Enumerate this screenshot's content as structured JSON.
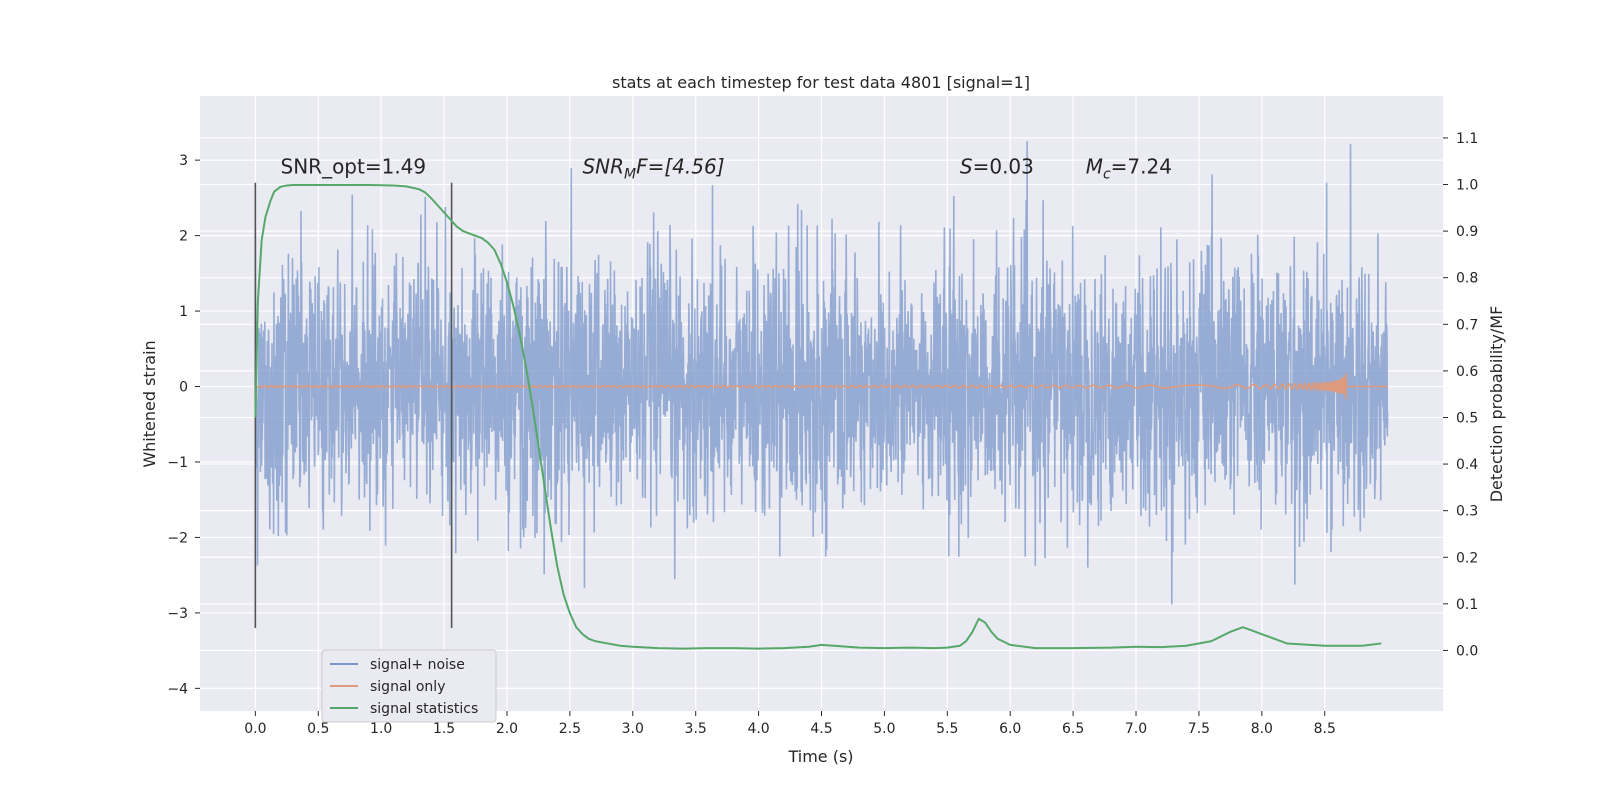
{
  "chart_data": {
    "type": "line",
    "title": "stats at each timestep for test data 4801 [signal=1]",
    "xlabel": "Time (s)",
    "ylabel": "Whitened strain",
    "y2label": "Detection probability/MF",
    "xlim": [
      -0.44,
      9.44
    ],
    "ylim": [
      -4.3,
      3.85
    ],
    "y2lim": [
      -0.13,
      1.19
    ],
    "xticks": [
      "0.0",
      "0.5",
      "1.0",
      "1.5",
      "2.0",
      "2.5",
      "3.0",
      "3.5",
      "4.0",
      "4.5",
      "5.0",
      "5.5",
      "6.0",
      "6.5",
      "7.0",
      "7.5",
      "8.0",
      "8.5"
    ],
    "yticks": [
      "−4",
      "−3",
      "−2",
      "−1",
      "0",
      "1",
      "2",
      "3"
    ],
    "y2ticks": [
      "0.0",
      "0.1",
      "0.2",
      "0.3",
      "0.4",
      "0.5",
      "0.6",
      "0.7",
      "0.8",
      "0.9",
      "1.0",
      "1.1"
    ],
    "grid": true,
    "legend_position": "lower-left",
    "colors": {
      "noise": "#7a97c9",
      "signal": "#dd9a7c",
      "stat": "#55a868",
      "vline": "#555555",
      "background": "#eaeaf2",
      "grid": "#ffffff"
    },
    "series": [
      {
        "name": "signal+ noise",
        "kind": "noise",
        "t_start": 0.0,
        "t_end": 9.0,
        "std": 0.85,
        "envelope_y": [
          -2.6,
          2.6
        ]
      },
      {
        "name": "signal only",
        "kind": "chirp",
        "t_start": 0.0,
        "t_end": 9.0,
        "merger_time": 8.67,
        "max_amplitude": 0.2
      },
      {
        "name": "signal statistics",
        "kind": "line",
        "axis": "right",
        "x": [
          0.0,
          0.02,
          0.05,
          0.08,
          0.12,
          0.15,
          0.2,
          0.25,
          0.3,
          0.4,
          0.5,
          0.7,
          0.9,
          1.1,
          1.2,
          1.3,
          1.35,
          1.4,
          1.45,
          1.5,
          1.55,
          1.6,
          1.65,
          1.7,
          1.75,
          1.8,
          1.85,
          1.9,
          1.95,
          2.0,
          2.05,
          2.1,
          2.15,
          2.2,
          2.25,
          2.3,
          2.35,
          2.4,
          2.45,
          2.5,
          2.55,
          2.6,
          2.65,
          2.7,
          2.8,
          2.9,
          3.0,
          3.2,
          3.4,
          3.6,
          3.8,
          4.0,
          4.2,
          4.4,
          4.5,
          4.6,
          4.8,
          5.0,
          5.2,
          5.4,
          5.5,
          5.6,
          5.65,
          5.7,
          5.75,
          5.8,
          5.85,
          5.9,
          6.0,
          6.2,
          6.5,
          6.8,
          7.0,
          7.2,
          7.4,
          7.6,
          7.75,
          7.85,
          8.0,
          8.2,
          8.5,
          8.8,
          8.95
        ],
        "y": [
          0.5,
          0.75,
          0.88,
          0.93,
          0.965,
          0.985,
          0.995,
          0.998,
          0.999,
          0.999,
          0.999,
          0.999,
          0.999,
          0.998,
          0.996,
          0.99,
          0.983,
          0.97,
          0.955,
          0.94,
          0.925,
          0.91,
          0.9,
          0.895,
          0.89,
          0.885,
          0.875,
          0.86,
          0.83,
          0.79,
          0.74,
          0.68,
          0.61,
          0.53,
          0.44,
          0.35,
          0.26,
          0.18,
          0.12,
          0.08,
          0.05,
          0.035,
          0.025,
          0.02,
          0.015,
          0.01,
          0.008,
          0.005,
          0.004,
          0.005,
          0.005,
          0.004,
          0.005,
          0.008,
          0.012,
          0.01,
          0.006,
          0.005,
          0.006,
          0.005,
          0.006,
          0.01,
          0.02,
          0.04,
          0.068,
          0.06,
          0.04,
          0.025,
          0.012,
          0.005,
          0.005,
          0.006,
          0.008,
          0.007,
          0.01,
          0.02,
          0.04,
          0.05,
          0.035,
          0.015,
          0.01,
          0.01,
          0.015
        ]
      }
    ],
    "vlines": [
      {
        "x": 0.0,
        "y_range": [
          -3.2,
          2.7
        ]
      },
      {
        "x": 1.56,
        "y_range": [
          -3.2,
          2.7
        ]
      }
    ],
    "annotations": [
      {
        "key": "snr_opt",
        "text": "SNR_opt=1.49",
        "x": 0.2,
        "y": 2.82
      },
      {
        "key": "snr_mf",
        "label": "SNR",
        "sub": "M",
        "suffix": "F=[4.56]",
        "x": 2.6,
        "y": 2.82
      },
      {
        "key": "s",
        "label": "S",
        "suffix": "=0.03",
        "x": 5.6,
        "y": 2.82
      },
      {
        "key": "mc",
        "label": "M",
        "sub": "c",
        "suffix": "=7.24",
        "x": 6.6,
        "y": 2.82
      }
    ]
  }
}
